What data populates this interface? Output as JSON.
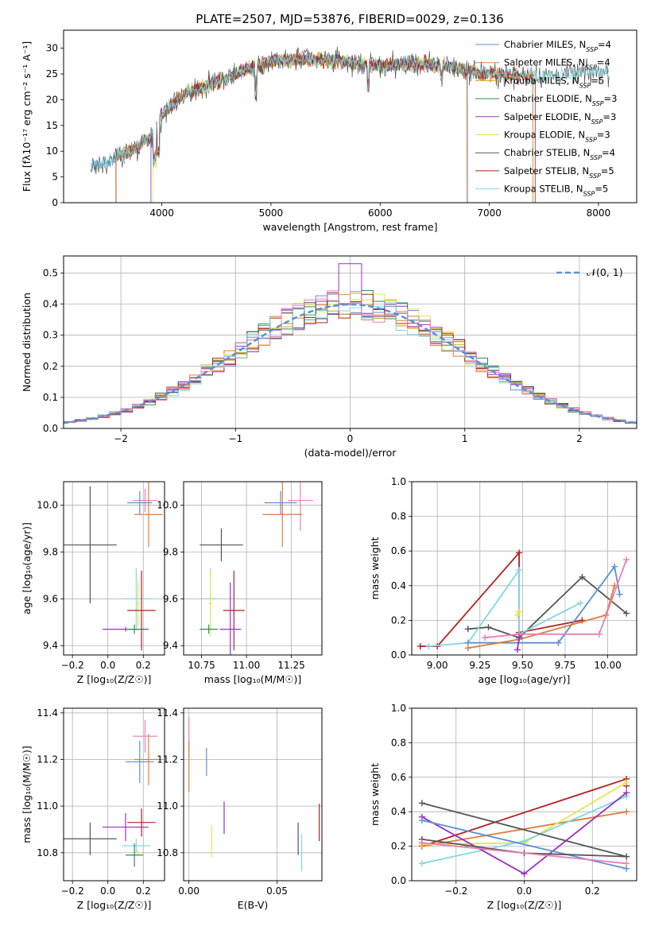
{
  "figure": {
    "title": "PLATE=2507, MJD=53876, FIBERID=0029, z=0.136",
    "colors": {
      "chabrier_miles": "#5b8fd6",
      "salpeter_miles": "#e07b39",
      "kroupa_miles": "#d4a017",
      "chabrier_elodie": "#2e8b57",
      "salpeter_elodie": "#9b30c0",
      "kroupa_elodie": "#e6e44f",
      "chabrier_stelib": "#555555",
      "salpeter_stelib": "#b22222",
      "kroupa_stelib": "#7fd8e0",
      "pink": "#e87fb6",
      "gaussian": "#5b8fd6"
    }
  },
  "chart_data": [
    {
      "id": "spectrum",
      "type": "line",
      "title": "PLATE=2507, MJD=53876, FIBERID=0029, z=0.136",
      "xlabel": "wavelength [Angstrom, rest frame]",
      "ylabel": "Flux [fλ10⁻¹⁷ erg cm⁻² s⁻¹ A⁻¹]",
      "xlim": [
        3100,
        8350
      ],
      "ylim": [
        0,
        33.5
      ],
      "xticks": [
        4000,
        5000,
        6000,
        7000,
        8000
      ],
      "yticks": [
        0,
        5,
        10,
        15,
        20,
        25,
        30
      ],
      "legend_position": "top-right",
      "legend": [
        "Chabrier MILES, N_SSP=4",
        "Salpeter MILES, N_SSP=4",
        "Kroupa MILES, N_SSP=5",
        "Chabrier ELODIE, N_SSP=3",
        "Salpeter ELODIE, N_SSP=3",
        "Kroupa ELODIE, N_SSP=3",
        "Chabrier STELIB, N_SSP=4",
        "Salpeter STELIB, N_SSP=5",
        "Kroupa STELIB, N_SSP=5"
      ],
      "continuum_x": [
        3350,
        3500,
        3700,
        3900,
        4000,
        4200,
        4500,
        4800,
        5000,
        5300,
        5600,
        6000,
        6300,
        6600,
        7000,
        7400,
        7800,
        8100
      ],
      "continuum_y": [
        7,
        8,
        10,
        13,
        17,
        21,
        23.5,
        26,
        27.5,
        27.8,
        27.5,
        26.5,
        27,
        26.5,
        25,
        24.5,
        25,
        25.5
      ],
      "grid": false
    },
    {
      "id": "residuals",
      "type": "bar",
      "xlabel": "(data-model)/error",
      "ylabel": "Normed distribution",
      "xlim": [
        -2.5,
        2.5
      ],
      "ylim": [
        0,
        0.555
      ],
      "xticks": [
        -2,
        -1,
        0,
        1,
        2
      ],
      "yticks": [
        0.0,
        0.1,
        0.2,
        0.3,
        0.4,
        0.5
      ],
      "legend": [
        "𝒩(0, 1)"
      ],
      "legend_position": "top-right",
      "bin_width": 0.1,
      "grid": true
    },
    {
      "id": "z_age",
      "type": "scatter",
      "xlabel": "Z [log₁₀(Z/Z☉)]",
      "ylabel": "age  [log₁₀(age/yr)]",
      "xlim": [
        -0.25,
        0.32
      ],
      "ylim": [
        9.36,
        10.1
      ],
      "xticks": [
        -0.2,
        0.0,
        0.2
      ],
      "yticks": [
        9.4,
        9.6,
        9.8,
        10.0
      ],
      "points": [
        {
          "c": "chabrier_stelib",
          "x": -0.1,
          "y": 9.83,
          "xerr": 0.15,
          "yerr": 0.25
        },
        {
          "c": "pink",
          "x": 0.21,
          "y": 10.02,
          "xerr": 0.07,
          "yerr": 0.05
        },
        {
          "c": "chabrier_miles",
          "x": 0.18,
          "y": 10.01,
          "xerr": 0.07,
          "yerr": 0.05
        },
        {
          "c": "salpeter_miles",
          "x": 0.23,
          "y": 9.96,
          "xerr": 0.08,
          "yerr": 0.14
        },
        {
          "c": "kroupa_stelib",
          "x": 0.16,
          "y": 9.6,
          "xerr": 0.08,
          "yerr": 0.13
        },
        {
          "c": "kroupa_elodie",
          "x": 0.17,
          "y": 9.58,
          "xerr": 0.01,
          "yerr": 0.1
        },
        {
          "c": "salpeter_stelib",
          "x": 0.19,
          "y": 9.55,
          "xerr": 0.08,
          "yerr": 0.17
        },
        {
          "c": "salpeter_elodie",
          "x": 0.1,
          "y": 9.47,
          "xerr": 0.13,
          "yerr": 0.01
        },
        {
          "c": "chabrier_elodie",
          "x": 0.15,
          "y": 9.47,
          "xerr": 0.05,
          "yerr": 0.02
        }
      ],
      "grid": true
    },
    {
      "id": "mass_age",
      "type": "scatter",
      "xlabel": "mass [log₁₀(M/M☉)]",
      "ylabel": "",
      "xlim": [
        10.65,
        11.42
      ],
      "ylim": [
        9.36,
        10.1
      ],
      "xticks": [
        10.75,
        11.0,
        11.25
      ],
      "yticks": [
        9.4,
        9.6,
        9.8,
        10.0
      ],
      "points": [
        {
          "c": "chabrier_stelib",
          "x": 10.86,
          "y": 9.83,
          "xerr": 0.12,
          "yerr": 0.07
        },
        {
          "c": "pink",
          "x": 11.3,
          "y": 10.02,
          "xerr": 0.07,
          "yerr": 0.13
        },
        {
          "c": "chabrier_miles",
          "x": 11.19,
          "y": 10.01,
          "xerr": 0.09,
          "yerr": 0.05
        },
        {
          "c": "salpeter_miles",
          "x": 11.2,
          "y": 9.96,
          "xerr": 0.11,
          "yerr": 0.14
        },
        {
          "c": "kroupa_stelib",
          "x": 10.8,
          "y": 9.6,
          "xerr": 0.03,
          "yerr": 0.13
        },
        {
          "c": "kroupa_elodie",
          "x": 10.8,
          "y": 9.58,
          "xerr": 0.01,
          "yerr": 0.14
        },
        {
          "c": "salpeter_stelib",
          "x": 10.93,
          "y": 9.55,
          "xerr": 0.06,
          "yerr": 0.17
        },
        {
          "c": "salpeter_elodie",
          "x": 10.91,
          "y": 9.47,
          "xerr": 0.06,
          "yerr": 0.2
        },
        {
          "c": "chabrier_elodie",
          "x": 10.79,
          "y": 9.47,
          "xerr": 0.05,
          "yerr": 0.02
        }
      ],
      "grid": true
    },
    {
      "id": "age_weight",
      "type": "line",
      "xlabel": "age  [log₁₀(age/yr)]",
      "ylabel": "mass weight",
      "xlim": [
        8.85,
        10.17
      ],
      "ylim": [
        0,
        1.0
      ],
      "xticks": [
        9.0,
        9.25,
        9.5,
        9.75,
        10.0
      ],
      "yticks": [
        0.0,
        0.2,
        0.4,
        0.6,
        0.8,
        1.0
      ],
      "series": [
        {
          "c": "salpeter_stelib",
          "x": [
            8.9,
            9.0,
            9.48,
            9.48,
            9.85
          ],
          "y": [
            0.05,
            0.05,
            0.59,
            0.13,
            0.2
          ]
        },
        {
          "c": "chabrier_stelib",
          "x": [
            9.18,
            9.3,
            9.48,
            9.85,
            10.11
          ],
          "y": [
            0.15,
            0.16,
            0.1,
            0.45,
            0.24
          ]
        },
        {
          "c": "kroupa_stelib",
          "x": [
            8.95,
            9.18,
            9.48,
            9.48,
            9.84
          ],
          "y": [
            0.05,
            0.07,
            0.49,
            0.12,
            0.3
          ]
        },
        {
          "c": "chabrier_miles",
          "x": [
            9.18,
            9.71,
            10.04,
            10.07
          ],
          "y": [
            0.07,
            0.07,
            0.51,
            0.35
          ]
        },
        {
          "c": "salpeter_miles",
          "x": [
            9.18,
            9.48,
            9.99,
            10.04
          ],
          "y": [
            0.04,
            0.09,
            0.23,
            0.4
          ]
        },
        {
          "c": "pink",
          "x": [
            9.28,
            9.48,
            9.95,
            10.11
          ],
          "y": [
            0.1,
            0.12,
            0.12,
            0.55
          ]
        },
        {
          "c": "salpeter_elodie",
          "x": [
            9.47,
            9.48
          ],
          "y": [
            0.03,
            0.1
          ]
        },
        {
          "c": "kroupa_elodie",
          "x": [
            9.47,
            9.48
          ],
          "y": [
            0.23,
            0.25
          ]
        }
      ],
      "grid": true
    },
    {
      "id": "z_mass",
      "type": "scatter",
      "xlabel": "Z [log₁₀(Z/Z☉)]",
      "ylabel": "mass [log₁₀(M/M☉)]",
      "xlim": [
        -0.25,
        0.32
      ],
      "ylim": [
        10.68,
        11.42
      ],
      "xticks": [
        -0.2,
        0.0,
        0.2
      ],
      "yticks": [
        10.8,
        11.0,
        11.2,
        11.4
      ],
      "points": [
        {
          "c": "chabrier_stelib",
          "x": -0.1,
          "y": 10.86,
          "xerr": 0.15,
          "yerr": 0.07
        },
        {
          "c": "pink",
          "x": 0.21,
          "y": 11.3,
          "xerr": 0.07,
          "yerr": 0.07
        },
        {
          "c": "chabrier_miles",
          "x": 0.18,
          "y": 11.19,
          "xerr": 0.08,
          "yerr": 0.09
        },
        {
          "c": "salpeter_miles",
          "x": 0.23,
          "y": 11.2,
          "xerr": 0.08,
          "yerr": 0.11
        },
        {
          "c": "kroupa_stelib",
          "x": 0.16,
          "y": 10.83,
          "xerr": 0.08,
          "yerr": 0.03
        },
        {
          "c": "kroupa_elodie",
          "x": 0.17,
          "y": 10.8,
          "xerr": 0.01,
          "yerr": 0.01
        },
        {
          "c": "salpeter_stelib",
          "x": 0.19,
          "y": 10.93,
          "xerr": 0.08,
          "yerr": 0.06
        },
        {
          "c": "salpeter_elodie",
          "x": 0.1,
          "y": 10.91,
          "xerr": 0.13,
          "yerr": 0.06
        },
        {
          "c": "chabrier_elodie",
          "x": 0.15,
          "y": 10.79,
          "xerr": 0.05,
          "yerr": 0.05
        }
      ],
      "grid": true
    },
    {
      "id": "ebv_mass",
      "type": "scatter",
      "xlabel": "E(B-V)",
      "ylabel": "",
      "xlim": [
        -0.003,
        0.0755
      ],
      "ylim": [
        10.68,
        11.42
      ],
      "xticks": [
        0.0,
        0.05
      ],
      "yticks": [
        10.8,
        11.0,
        11.2,
        11.4
      ],
      "points": [
        {
          "c": "pink",
          "x": 0.0,
          "y": 11.3,
          "xerr": 0,
          "yerr": 0.08
        },
        {
          "c": "salpeter_miles",
          "x": 0.0,
          "y": 11.17,
          "xerr": 0,
          "yerr": 0.11
        },
        {
          "c": "chabrier_miles",
          "x": 0.01,
          "y": 11.19,
          "xerr": 0,
          "yerr": 0.06
        },
        {
          "c": "kroupa_elodie",
          "x": 0.013,
          "y": 10.85,
          "xerr": 0,
          "yerr": 0.07
        },
        {
          "c": "salpeter_elodie",
          "x": 0.02,
          "y": 10.95,
          "xerr": 0,
          "yerr": 0.07
        },
        {
          "c": "chabrier_stelib",
          "x": 0.062,
          "y": 10.86,
          "xerr": 0,
          "yerr": 0.07
        },
        {
          "c": "kroupa_stelib",
          "x": 0.064,
          "y": 10.8,
          "xerr": 0,
          "yerr": 0.08
        },
        {
          "c": "salpeter_stelib",
          "x": 0.074,
          "y": 10.93,
          "xerr": 0,
          "yerr": 0.08
        }
      ],
      "grid": true
    },
    {
      "id": "z_weight",
      "type": "line",
      "xlabel": "Z [log₁₀(Z/Z☉)]",
      "ylabel": "mass weight",
      "xlim": [
        -0.33,
        0.33
      ],
      "ylim": [
        0,
        1.0
      ],
      "xticks": [
        -0.2,
        0.0,
        0.2
      ],
      "yticks": [
        0.0,
        0.2,
        0.4,
        0.6,
        0.8,
        1.0
      ],
      "series": [
        {
          "c": "salpeter_stelib",
          "x": [
            -0.3,
            0.3,
            0.3
          ],
          "y": [
            0.2,
            0.59,
            0.55
          ]
        },
        {
          "c": "salpeter_miles",
          "x": [
            -0.3,
            0.3
          ],
          "y": [
            0.2,
            0.4
          ]
        },
        {
          "c": "kroupa_elodie",
          "x": [
            -0.3,
            0.0,
            0.3
          ],
          "y": [
            0.21,
            0.22,
            0.57
          ]
        },
        {
          "c": "kroupa_stelib",
          "x": [
            -0.3,
            0.0,
            0.3
          ],
          "y": [
            0.1,
            0.23,
            0.49
          ]
        },
        {
          "c": "salpeter_elodie",
          "x": [
            -0.3,
            0.0,
            0.3
          ],
          "y": [
            0.37,
            0.04,
            0.51
          ]
        },
        {
          "c": "chabrier_miles",
          "x": [
            -0.3,
            0.3
          ],
          "y": [
            0.35,
            0.07
          ]
        },
        {
          "c": "chabrier_stelib",
          "x": [
            -0.3,
            0.0,
            0.3,
            -0.3
          ],
          "y": [
            0.24,
            0.16,
            0.14,
            0.45
          ]
        },
        {
          "c": "pink",
          "x": [
            -0.3,
            0.3
          ],
          "y": [
            0.22,
            0.1
          ]
        }
      ],
      "grid": true
    }
  ]
}
